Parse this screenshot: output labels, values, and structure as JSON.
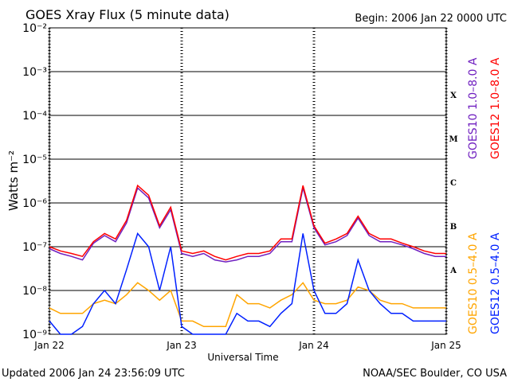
{
  "chart_data": {
    "type": "line",
    "title": "GOES Xray Flux (5 minute data)",
    "subtitle": "Begin:  2006 Jan 22 0000 UTC",
    "x_label": "Universal Time",
    "y_label": "Watts m⁻²",
    "footer_left": "Updated 2006 Jan 24 23:56:09 UTC",
    "footer_right": "NOAA/SEC Boulder, CO USA",
    "log_y": true,
    "grid": true,
    "xlim": [
      0,
      72
    ],
    "xticks": [
      {
        "value": 0,
        "label": "Jan 22"
      },
      {
        "value": 24,
        "label": "Jan 23"
      },
      {
        "value": 48,
        "label": "Jan 24"
      },
      {
        "value": 72,
        "label": "Jan 25"
      }
    ],
    "ylim": [
      1e-09,
      0.01
    ],
    "yticks": [
      {
        "value": 1e-09,
        "label": "10⁻⁹"
      },
      {
        "value": 1e-08,
        "label": "10⁻⁸"
      },
      {
        "value": 1e-07,
        "label": "10⁻⁷"
      },
      {
        "value": 1e-06,
        "label": "10⁻⁶"
      },
      {
        "value": 1e-05,
        "label": "10⁻⁵"
      },
      {
        "value": 0.0001,
        "label": "10⁻⁴"
      },
      {
        "value": 0.001,
        "label": "10⁻³"
      },
      {
        "value": 0.01,
        "label": "10⁻²"
      }
    ],
    "flare_classes": [
      {
        "value": 0.0003,
        "label": "X"
      },
      {
        "value": 3e-05,
        "label": "M"
      },
      {
        "value": 3e-06,
        "label": "C"
      },
      {
        "value": 3e-07,
        "label": "B"
      },
      {
        "value": 3e-08,
        "label": "A"
      }
    ],
    "x": [
      0,
      2,
      4,
      6,
      8,
      10,
      12,
      14,
      16,
      18,
      20,
      22,
      24,
      26,
      28,
      30,
      32,
      34,
      36,
      38,
      40,
      42,
      44,
      46,
      48,
      50,
      52,
      54,
      56,
      58,
      60,
      62,
      64,
      66,
      68,
      70,
      72
    ],
    "series": [
      {
        "name": "GOES10 1.0–8.0 A",
        "color": "#7020c0",
        "values": [
          9e-08,
          7e-08,
          6e-08,
          5e-08,
          1.2e-07,
          1.8e-07,
          1.3e-07,
          3.5e-07,
          2.2e-06,
          1.3e-06,
          2.7e-07,
          7e-07,
          7e-08,
          6e-08,
          7e-08,
          5e-08,
          4.5e-08,
          5e-08,
          6e-08,
          6e-08,
          7e-08,
          1.3e-07,
          1.3e-07,
          2.2e-06,
          2.7e-07,
          1.1e-07,
          1.3e-07,
          1.8e-07,
          4.5e-07,
          1.8e-07,
          1.3e-07,
          1.3e-07,
          1.1e-07,
          9e-08,
          7e-08,
          6e-08,
          6e-08
        ]
      },
      {
        "name": "GOES12 1.0–8.0 A",
        "color": "#ff0000",
        "values": [
          1e-07,
          8e-08,
          7e-08,
          6e-08,
          1.3e-07,
          2e-07,
          1.5e-07,
          4e-07,
          2.5e-06,
          1.5e-06,
          3e-07,
          8e-07,
          8e-08,
          7e-08,
          8e-08,
          6e-08,
          5e-08,
          6e-08,
          7e-08,
          7e-08,
          8e-08,
          1.5e-07,
          1.5e-07,
          2.5e-06,
          3e-07,
          1.2e-07,
          1.5e-07,
          2e-07,
          5e-07,
          2e-07,
          1.5e-07,
          1.5e-07,
          1.2e-07,
          1e-07,
          8e-08,
          7e-08,
          7e-08
        ]
      },
      {
        "name": "GOES10 0.5–4.0 A",
        "color": "#ffa500",
        "values": [
          4e-09,
          3e-09,
          3e-09,
          3e-09,
          5e-09,
          6e-09,
          5e-09,
          8e-09,
          1.5e-08,
          1e-08,
          6e-09,
          1e-08,
          2e-09,
          2e-09,
          1.5e-09,
          1.5e-09,
          1.5e-09,
          8e-09,
          5e-09,
          5e-09,
          4e-09,
          6e-09,
          8e-09,
          1.5e-08,
          6e-09,
          5e-09,
          5e-09,
          6e-09,
          1.2e-08,
          1e-08,
          6e-09,
          5e-09,
          5e-09,
          4e-09,
          4e-09,
          4e-09,
          4e-09
        ]
      },
      {
        "name": "GOES12 0.5–4.0 A",
        "color": "#0020ff",
        "values": [
          2e-09,
          1e-09,
          1e-09,
          1.5e-09,
          5e-09,
          1e-08,
          5e-09,
          3e-08,
          2e-07,
          1e-07,
          1e-08,
          1e-07,
          1.5e-09,
          1e-09,
          1e-09,
          1e-09,
          1e-09,
          3e-09,
          2e-09,
          2e-09,
          1.5e-09,
          3e-09,
          5e-09,
          2e-07,
          1e-08,
          3e-09,
          3e-09,
          5e-09,
          5e-08,
          1e-08,
          5e-09,
          3e-09,
          3e-09,
          2e-09,
          2e-09,
          2e-09,
          2e-09
        ]
      }
    ]
  }
}
